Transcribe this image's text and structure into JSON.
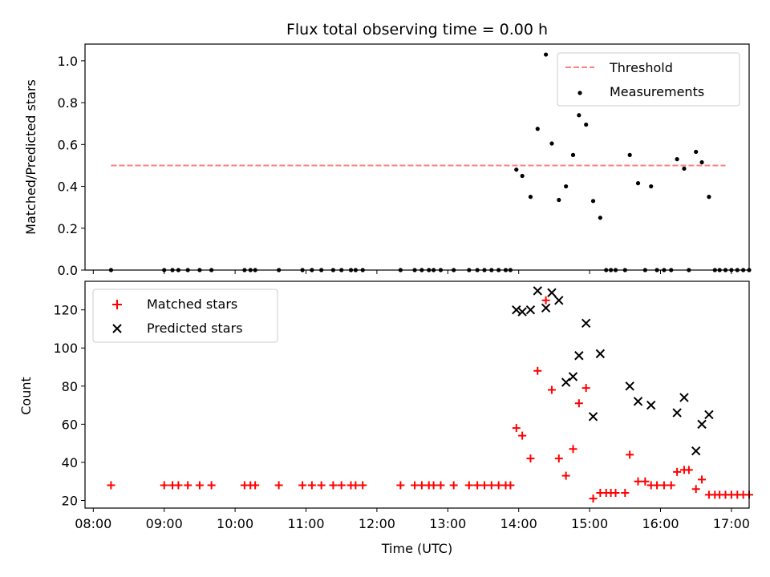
{
  "chart_data": [
    {
      "type": "scatter",
      "title": "Flux total observing time = 0.00 h",
      "xlabel": "",
      "ylabel": "Matched/Predicted stars",
      "xlim": [
        "07:53",
        "17:15"
      ],
      "ylim": [
        0,
        1.08
      ],
      "yticks": [
        "0.0",
        "0.2",
        "0.4",
        "0.6",
        "0.8",
        "1.0"
      ],
      "legend": {
        "placement": "top-right",
        "entries": [
          "Threshold",
          "Measurements"
        ]
      },
      "grid": false,
      "colors": {
        "threshold": "#ff7f7f",
        "measurements": "#000000"
      },
      "threshold": {
        "name": "Threshold",
        "y": 0.5,
        "x_start": "08:15",
        "x_end": "16:55"
      },
      "series": [
        {
          "name": "Measurements",
          "points": [
            [
              "08:15",
              0
            ],
            [
              "09:00",
              0
            ],
            [
              "09:07",
              0
            ],
            [
              "09:12",
              0
            ],
            [
              "09:20",
              0
            ],
            [
              "09:30",
              0
            ],
            [
              "09:40",
              0
            ],
            [
              "10:08",
              0
            ],
            [
              "10:13",
              0
            ],
            [
              "10:17",
              0
            ],
            [
              "10:37",
              0
            ],
            [
              "10:57",
              0
            ],
            [
              "11:05",
              0
            ],
            [
              "11:13",
              0
            ],
            [
              "11:23",
              0
            ],
            [
              "11:30",
              0
            ],
            [
              "11:38",
              0
            ],
            [
              "11:42",
              0
            ],
            [
              "11:48",
              0
            ],
            [
              "12:20",
              0
            ],
            [
              "12:32",
              0
            ],
            [
              "12:38",
              0
            ],
            [
              "12:44",
              0
            ],
            [
              "12:48",
              0
            ],
            [
              "12:54",
              0
            ],
            [
              "13:05",
              0
            ],
            [
              "13:18",
              0
            ],
            [
              "13:25",
              0
            ],
            [
              "13:31",
              0
            ],
            [
              "13:37",
              0
            ],
            [
              "13:43",
              0
            ],
            [
              "13:49",
              0
            ],
            [
              "13:53",
              0
            ],
            [
              "13:58",
              0.48
            ],
            [
              "14:03",
              0.45
            ],
            [
              "14:10",
              0.35
            ],
            [
              "14:16",
              0.675
            ],
            [
              "14:23",
              1.03
            ],
            [
              "14:28",
              0.605
            ],
            [
              "14:34",
              0.335
            ],
            [
              "14:40",
              0.4
            ],
            [
              "14:46",
              0.55
            ],
            [
              "14:51",
              0.74
            ],
            [
              "14:57",
              0.695
            ],
            [
              "15:03",
              0.33
            ],
            [
              "15:09",
              0.25
            ],
            [
              "15:14",
              0
            ],
            [
              "15:18",
              0
            ],
            [
              "15:22",
              0
            ],
            [
              "15:30",
              0
            ],
            [
              "15:34",
              0.55
            ],
            [
              "15:41",
              0.415
            ],
            [
              "15:47",
              0
            ],
            [
              "15:52",
              0.4
            ],
            [
              "15:57",
              0
            ],
            [
              "16:03",
              0
            ],
            [
              "16:09",
              0
            ],
            [
              "16:14",
              0.53
            ],
            [
              "16:20",
              0.485
            ],
            [
              "16:24",
              0
            ],
            [
              "16:30",
              0.565
            ],
            [
              "16:35",
              0.515
            ],
            [
              "16:41",
              0.35
            ],
            [
              "16:46",
              0
            ],
            [
              "16:50",
              0
            ],
            [
              "16:55",
              0
            ],
            [
              "17:00",
              0
            ],
            [
              "17:05",
              0
            ],
            [
              "17:10",
              0
            ],
            [
              "17:15",
              0
            ]
          ]
        }
      ]
    },
    {
      "type": "scatter",
      "title": "",
      "xlabel": "Time (UTC)",
      "ylabel": "Count",
      "xlim": [
        "07:53",
        "17:15"
      ],
      "xticks": [
        "08:00",
        "09:00",
        "10:00",
        "11:00",
        "12:00",
        "13:00",
        "14:00",
        "15:00",
        "16:00",
        "17:00"
      ],
      "ylim": [
        16,
        135
      ],
      "yticks": [
        "20",
        "40",
        "60",
        "80",
        "100",
        "120"
      ],
      "legend": {
        "placement": "top-left",
        "entries": [
          "Matched stars",
          "Predicted stars"
        ]
      },
      "grid": false,
      "colors": {
        "matched": "#ff0000",
        "predicted": "#000000"
      },
      "series": [
        {
          "name": "Matched stars",
          "points": [
            [
              "08:15",
              28
            ],
            [
              "09:00",
              28
            ],
            [
              "09:07",
              28
            ],
            [
              "09:12",
              28
            ],
            [
              "09:20",
              28
            ],
            [
              "09:30",
              28
            ],
            [
              "09:40",
              28
            ],
            [
              "10:08",
              28
            ],
            [
              "10:13",
              28
            ],
            [
              "10:17",
              28
            ],
            [
              "10:37",
              28
            ],
            [
              "10:57",
              28
            ],
            [
              "11:05",
              28
            ],
            [
              "11:13",
              28
            ],
            [
              "11:23",
              28
            ],
            [
              "11:30",
              28
            ],
            [
              "11:38",
              28
            ],
            [
              "11:42",
              28
            ],
            [
              "11:48",
              28
            ],
            [
              "12:20",
              28
            ],
            [
              "12:32",
              28
            ],
            [
              "12:38",
              28
            ],
            [
              "12:44",
              28
            ],
            [
              "12:48",
              28
            ],
            [
              "12:54",
              28
            ],
            [
              "13:05",
              28
            ],
            [
              "13:18",
              28
            ],
            [
              "13:25",
              28
            ],
            [
              "13:31",
              28
            ],
            [
              "13:37",
              28
            ],
            [
              "13:43",
              28
            ],
            [
              "13:49",
              28
            ],
            [
              "13:53",
              28
            ],
            [
              "13:58",
              58
            ],
            [
              "14:03",
              54
            ],
            [
              "14:10",
              42
            ],
            [
              "14:16",
              88
            ],
            [
              "14:23",
              125
            ],
            [
              "14:28",
              78
            ],
            [
              "14:34",
              42
            ],
            [
              "14:40",
              33
            ],
            [
              "14:46",
              47
            ],
            [
              "14:51",
              71
            ],
            [
              "14:57",
              79
            ],
            [
              "15:03",
              21
            ],
            [
              "15:09",
              24
            ],
            [
              "15:14",
              24
            ],
            [
              "15:18",
              24
            ],
            [
              "15:22",
              24
            ],
            [
              "15:30",
              24
            ],
            [
              "15:34",
              44
            ],
            [
              "15:41",
              30
            ],
            [
              "15:47",
              30
            ],
            [
              "15:52",
              28
            ],
            [
              "15:57",
              28
            ],
            [
              "16:03",
              28
            ],
            [
              "16:09",
              28
            ],
            [
              "16:14",
              35
            ],
            [
              "16:20",
              36
            ],
            [
              "16:24",
              36
            ],
            [
              "16:30",
              26
            ],
            [
              "16:35",
              31
            ],
            [
              "16:41",
              23
            ],
            [
              "16:46",
              23
            ],
            [
              "16:50",
              23
            ],
            [
              "16:55",
              23
            ],
            [
              "17:00",
              23
            ],
            [
              "17:05",
              23
            ],
            [
              "17:10",
              23
            ],
            [
              "17:15",
              23
            ]
          ]
        },
        {
          "name": "Predicted stars",
          "points": [
            [
              "13:58",
              120
            ],
            [
              "14:03",
              119
            ],
            [
              "14:10",
              120
            ],
            [
              "14:16",
              130
            ],
            [
              "14:23",
              121
            ],
            [
              "14:28",
              129
            ],
            [
              "14:34",
              125
            ],
            [
              "14:40",
              82
            ],
            [
              "14:46",
              85
            ],
            [
              "14:51",
              96
            ],
            [
              "14:57",
              113
            ],
            [
              "15:03",
              64
            ],
            [
              "15:09",
              97
            ],
            [
              "15:34",
              80
            ],
            [
              "15:41",
              72
            ],
            [
              "15:52",
              70
            ],
            [
              "16:14",
              66
            ],
            [
              "16:20",
              74
            ],
            [
              "16:30",
              46
            ],
            [
              "16:35",
              60
            ],
            [
              "16:41",
              65
            ]
          ]
        }
      ]
    }
  ]
}
